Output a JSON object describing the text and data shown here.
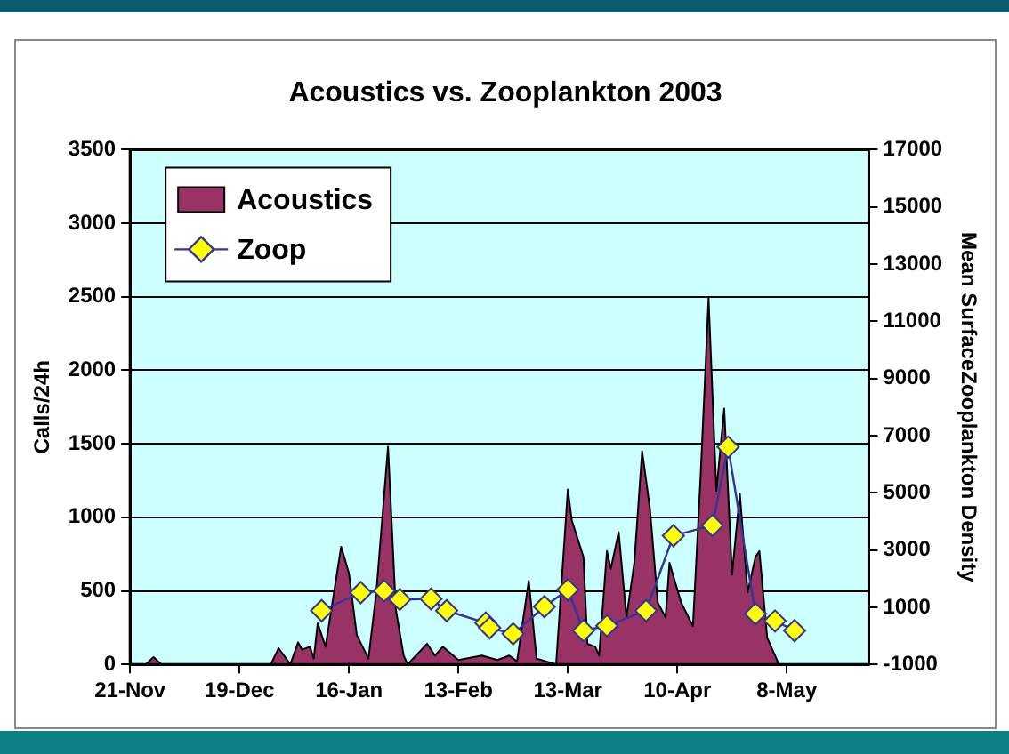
{
  "chart_data": {
    "type": "area",
    "title": "Acoustics vs. Zooplankton 2003",
    "ylabel": "Calls/24h",
    "y2label": "Mean SurfaceZooplankton Density",
    "xlim": [
      "2002-11-21",
      "2003-05-29"
    ],
    "xticks": [
      {
        "value": "2002-11-21",
        "label": "21-Nov"
      },
      {
        "value": "2002-12-19",
        "label": "19-Dec"
      },
      {
        "value": "2003-01-16",
        "label": "16-Jan"
      },
      {
        "value": "2003-02-13",
        "label": "13-Feb"
      },
      {
        "value": "2003-03-13",
        "label": "13-Mar"
      },
      {
        "value": "2003-04-10",
        "label": "10-Apr"
      },
      {
        "value": "2003-05-08",
        "label": "8-May"
      }
    ],
    "ylim": [
      0,
      3500
    ],
    "yticks": [
      0,
      500,
      1000,
      1500,
      2000,
      2500,
      3000,
      3500
    ],
    "y2lim": [
      -1000,
      17000
    ],
    "y2ticks": [
      -1000,
      1000,
      3000,
      5000,
      7000,
      9000,
      11000,
      13000,
      15000,
      17000
    ],
    "grid": "y",
    "legend": "top left",
    "series": [
      {
        "name": "Acoustics",
        "color": "#993366",
        "marker": "none",
        "x": [
          "2002-11-21",
          "2002-11-25",
          "2002-11-27",
          "2002-11-29",
          "2002-12-27",
          "2002-12-29",
          "2003-01-01",
          "2003-01-03",
          "2003-01-04",
          "2003-01-06",
          "2003-01-07",
          "2003-01-08",
          "2003-01-10",
          "2003-01-14",
          "2003-01-16",
          "2003-01-18",
          "2003-01-21",
          "2003-01-23",
          "2003-01-26",
          "2003-01-28",
          "2003-01-30",
          "2003-01-31",
          "2003-02-05",
          "2003-02-07",
          "2003-02-09",
          "2003-02-13",
          "2003-02-19",
          "2003-02-23",
          "2003-02-26",
          "2003-02-28",
          "2003-03-03",
          "2003-03-05",
          "2003-03-10",
          "2003-03-13",
          "2003-03-14",
          "2003-03-17",
          "2003-03-18",
          "2003-03-20",
          "2003-03-21",
          "2003-03-23",
          "2003-03-24",
          "2003-03-26",
          "2003-03-28",
          "2003-03-30",
          "2003-04-01",
          "2003-04-03",
          "2003-04-05",
          "2003-04-07",
          "2003-04-08",
          "2003-04-11",
          "2003-04-14",
          "2003-04-16",
          "2003-04-18",
          "2003-04-20",
          "2003-04-22",
          "2003-04-24",
          "2003-04-26",
          "2003-04-28",
          "2003-04-30",
          "2003-05-01",
          "2003-05-03",
          "2003-05-06",
          "2003-05-28"
        ],
        "values": [
          0,
          0,
          50,
          0,
          0,
          110,
          0,
          150,
          100,
          120,
          40,
          280,
          120,
          800,
          620,
          200,
          40,
          490,
          1480,
          370,
          60,
          0,
          140,
          60,
          120,
          30,
          60,
          30,
          60,
          20,
          570,
          40,
          0,
          1190,
          980,
          730,
          140,
          120,
          60,
          770,
          650,
          900,
          320,
          690,
          1450,
          1060,
          420,
          320,
          690,
          420,
          260,
          1300,
          2490,
          1180,
          1740,
          610,
          1160,
          490,
          730,
          770,
          180,
          0,
          0
        ]
      },
      {
        "name": "Zoop",
        "type": "line",
        "axis": "y2",
        "color": "#333399",
        "marker": "diamond",
        "line_style": "solid",
        "x": [
          "2003-01-09",
          "2003-01-19",
          "2003-01-25",
          "2003-01-29",
          "2003-02-06",
          "2003-02-10",
          "2003-02-20",
          "2003-02-21",
          "2003-02-27",
          "2003-03-07",
          "2003-03-13",
          "2003-03-17",
          "2003-03-23",
          "2003-04-02",
          "2003-04-09",
          "2003-04-19",
          "2003-04-23",
          "2003-04-30",
          "2003-05-05",
          "2003-05-10"
        ],
        "values": [
          880,
          1510,
          1570,
          1270,
          1290,
          880,
          450,
          280,
          70,
          1020,
          1610,
          180,
          350,
          880,
          3500,
          3860,
          6600,
          770,
          520,
          180
        ]
      }
    ]
  }
}
